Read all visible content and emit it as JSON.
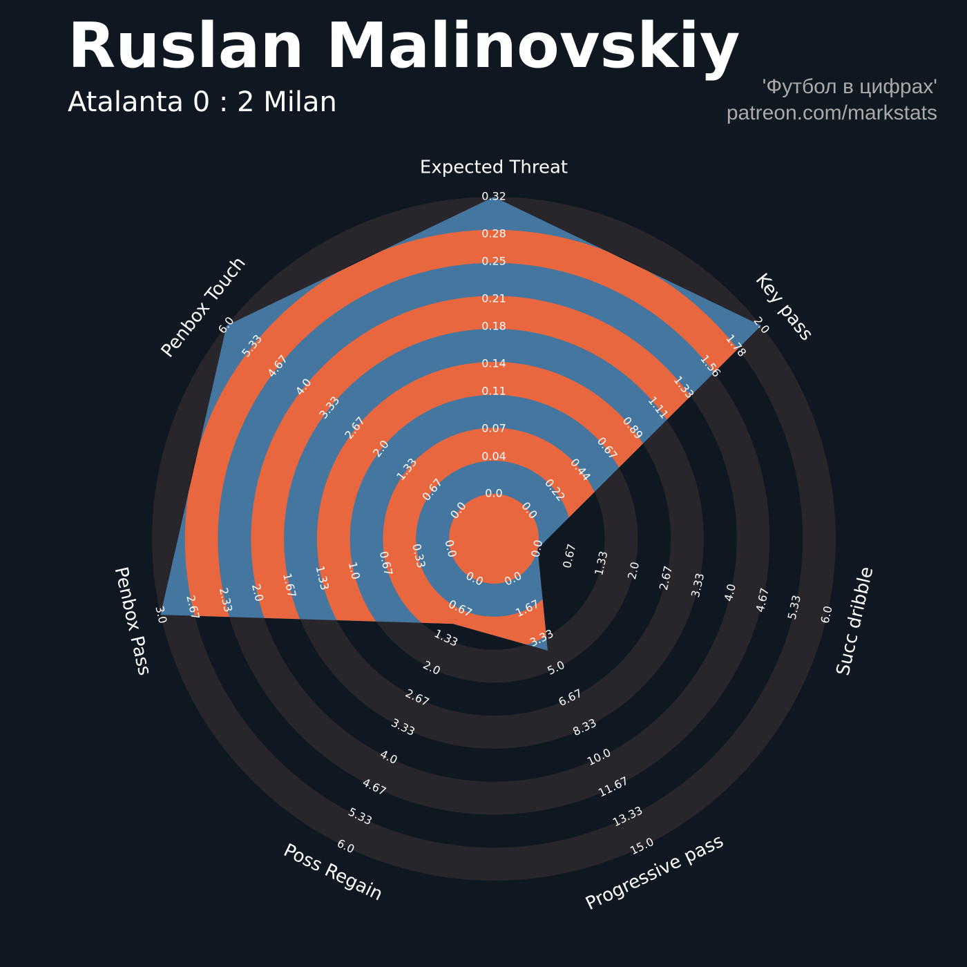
{
  "chart_data": {
    "type": "radar",
    "title": "Ruslan Malinovskiy",
    "subtitle": "Atalanta 0 : 2 Milan",
    "credits": [
      "'Футбол в цифрах'",
      "patreon.com/markstats"
    ],
    "categories": [
      "Expected Threat",
      "Key pass",
      "Succ dribble",
      "Progressive pass",
      "Poss Regain",
      "Penbox Pass",
      "Penbox Touch"
    ],
    "values": [
      0.32,
      2,
      0,
      4,
      1,
      3,
      6
    ],
    "ranges": [
      [
        0,
        0.32
      ],
      [
        0,
        2
      ],
      [
        0,
        6
      ],
      [
        0,
        15
      ],
      [
        0,
        6
      ],
      [
        0,
        3
      ],
      [
        0,
        6
      ]
    ],
    "ticks": [
      [
        {
          "value": 0,
          "label": "0.0"
        },
        0.04,
        0.07,
        0.11,
        0.14,
        0.18,
        0.21,
        0.25,
        0.28,
        0.32
      ],
      [
        {
          "value": 0,
          "label": "0.0"
        },
        0.22,
        0.44,
        0.67,
        0.89,
        1.11,
        1.33,
        1.56,
        1.78,
        {
          "value": 2,
          "label": "2.0"
        }
      ],
      [
        {
          "value": 0,
          "label": "0.0"
        },
        0.67,
        1.33,
        {
          "value": 2,
          "label": "2.0"
        },
        2.67,
        3.33,
        {
          "value": 4,
          "label": "4.0"
        },
        4.67,
        5.33,
        {
          "value": 6,
          "label": "6.0"
        }
      ],
      [
        {
          "value": 0,
          "label": "0.0"
        },
        1.67,
        3.33,
        {
          "value": 5,
          "label": "5.0"
        },
        6.67,
        8.33,
        {
          "value": 10,
          "label": "10.0"
        },
        11.67,
        13.33,
        {
          "value": 15,
          "label": "15.0"
        }
      ],
      [
        {
          "value": 0,
          "label": "0.0"
        },
        0.67,
        1.33,
        {
          "value": 2,
          "label": "2.0"
        },
        2.67,
        3.33,
        {
          "value": 4,
          "label": "4.0"
        },
        4.67,
        5.33,
        {
          "value": 6,
          "label": "6.0"
        }
      ],
      [
        {
          "value": 0,
          "label": "0.0"
        },
        0.33,
        0.67,
        {
          "value": 1,
          "label": "1.0"
        },
        1.33,
        1.67,
        {
          "value": 2,
          "label": "2.0"
        },
        2.33,
        2.67,
        {
          "value": 3,
          "label": "3.0"
        }
      ],
      [
        {
          "value": 0,
          "label": "0.0"
        },
        0.67,
        1.33,
        {
          "value": 2,
          "label": "2.0"
        },
        2.67,
        3.33,
        {
          "value": 4,
          "label": "4.0"
        },
        4.67,
        5.33,
        {
          "value": 6,
          "label": "6.0"
        }
      ]
    ],
    "color": "#4476a0",
    "ring_color": "#e8673f",
    "ring_bg_color": "#28252b"
  }
}
